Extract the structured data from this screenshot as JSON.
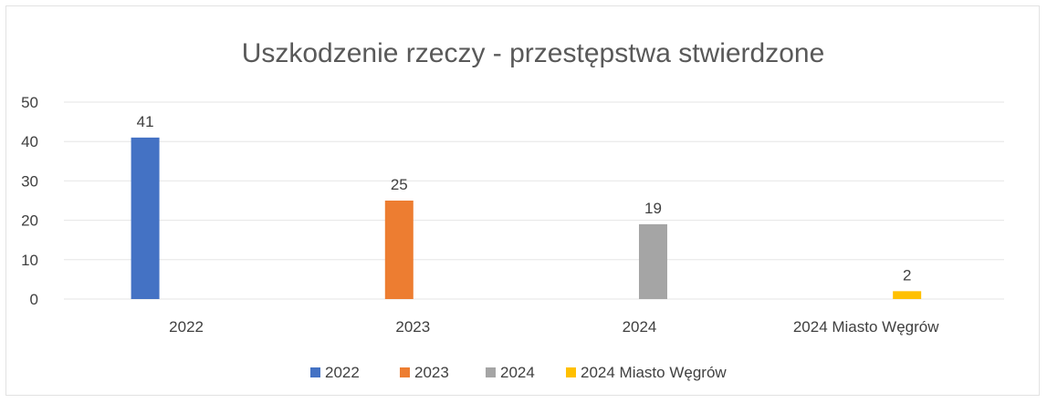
{
  "chart_data": {
    "type": "bar",
    "title": "Uszkodzenie rzeczy - przestępstwa stwierdzone",
    "categories": [
      "2022",
      "2023",
      "2024",
      "2024 Miasto Węgrów"
    ],
    "series": [
      {
        "name": "2022",
        "color": "#4472C4",
        "values": [
          41,
          null,
          null,
          null
        ]
      },
      {
        "name": "2023",
        "color": "#ED7D31",
        "values": [
          null,
          25,
          null,
          null
        ]
      },
      {
        "name": "2024",
        "color": "#A5A5A5",
        "values": [
          null,
          null,
          19,
          null
        ]
      },
      {
        "name": "2024 Miasto Węgrów",
        "color": "#FFC000",
        "values": [
          null,
          null,
          null,
          2
        ]
      }
    ],
    "y_ticks": [
      "0",
      "10",
      "20",
      "30",
      "40",
      "50"
    ],
    "ylim": [
      0,
      50
    ],
    "grid": true,
    "legend": "bottom"
  }
}
